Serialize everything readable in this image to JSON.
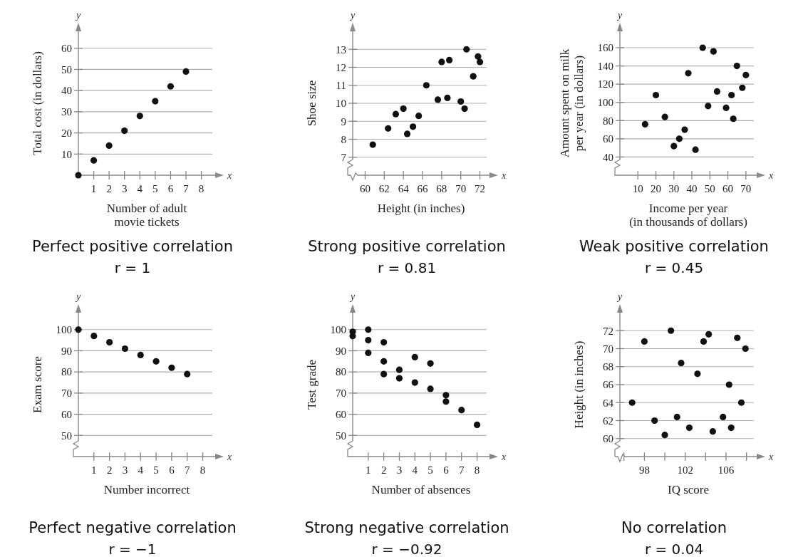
{
  "chart_data": [
    {
      "type": "scatter",
      "title": "Perfect positive correlation",
      "subtitle": "r = 1",
      "xlabel": "Number of adult\nmovie tickets",
      "ylabel": "Total cost (in dollars)",
      "annotations": [
        "y",
        "x"
      ],
      "xlim": [
        0,
        8.9
      ],
      "ylim": [
        0,
        68
      ],
      "xticks": [
        1,
        2,
        3,
        4,
        5,
        6,
        7,
        8
      ],
      "yticks": [
        10,
        20,
        30,
        40,
        50,
        60
      ],
      "grid": "y",
      "marker": "circle",
      "series": [
        {
          "color": "#111111",
          "x": [
            0,
            1,
            2,
            3,
            4,
            5,
            6,
            7
          ],
          "values": [
            0,
            7,
            14,
            21,
            28,
            35,
            42,
            49
          ]
        }
      ]
    },
    {
      "type": "scatter",
      "title": "Strong positive correlation",
      "subtitle": "r = 0.81",
      "xlabel": "Height (in inches)",
      "ylabel": "Shoe size",
      "annotations": [
        "y",
        "x"
      ],
      "xlim": [
        58.7,
        73
      ],
      "ylim": [
        6,
        14
      ],
      "xticks": [
        60,
        62,
        64,
        66,
        68,
        70,
        72
      ],
      "yticks": [
        7,
        8,
        9,
        10,
        11,
        12,
        13
      ],
      "grid": "y",
      "marker": "circle",
      "series": [
        {
          "color": "#111111",
          "x": [
            60.8,
            62.4,
            63.2,
            64.0,
            64.4,
            65.0,
            65.6,
            66.4,
            67.6,
            68.0,
            68.6,
            68.8,
            70.0,
            70.4,
            70.6,
            71.3,
            71.8,
            72.0
          ],
          "values": [
            7.7,
            8.6,
            9.4,
            9.7,
            8.3,
            8.7,
            9.3,
            11.0,
            10.2,
            12.3,
            10.3,
            12.4,
            10.1,
            9.7,
            13.0,
            11.5,
            12.6,
            12.3
          ]
        }
      ]
    },
    {
      "type": "scatter",
      "title": "Weak positive correlation",
      "subtitle": "r = 0.45",
      "xlabel": "Income per year\n(in thousands of dollars)",
      "ylabel": "Amount spent on milk\nper year (in dollars)",
      "annotations": [
        "y",
        "x"
      ],
      "xlim": [
        0,
        76
      ],
      "ylim": [
        20,
        178
      ],
      "xticks": [
        10,
        20,
        30,
        40,
        50,
        60,
        70
      ],
      "yticks": [
        40,
        60,
        80,
        100,
        120,
        140,
        160
      ],
      "grid": "y",
      "marker": "circle",
      "series": [
        {
          "color": "#111111",
          "x": [
            14,
            20,
            25,
            30,
            33,
            36,
            38,
            42,
            46,
            49,
            52,
            54,
            59,
            62,
            63,
            65,
            68,
            70
          ],
          "values": [
            76,
            108,
            84,
            52,
            60,
            70,
            132,
            48,
            160,
            96,
            156,
            112,
            94,
            108,
            82,
            140,
            116,
            130
          ]
        }
      ]
    },
    {
      "type": "scatter",
      "title": "Perfect negative correlation",
      "subtitle": "r = −1",
      "xlabel": "Number incorrect",
      "ylabel": "Exam score",
      "annotations": [
        "y",
        "x"
      ],
      "xlim": [
        0,
        8.8
      ],
      "ylim": [
        40,
        108
      ],
      "xticks": [
        1,
        2,
        3,
        4,
        5,
        6,
        7,
        8
      ],
      "yticks": [
        50,
        60,
        70,
        80,
        90,
        100
      ],
      "grid": "y",
      "marker": "circle",
      "series": [
        {
          "color": "#111111",
          "x": [
            0,
            1,
            2,
            3,
            4,
            5,
            6,
            7
          ],
          "values": [
            100,
            97,
            94,
            91,
            88,
            85,
            82,
            79
          ]
        }
      ]
    },
    {
      "type": "scatter",
      "title": "Strong negative correlation",
      "subtitle": "r = −0.92",
      "xlabel": "Number of absences",
      "ylabel": "Test grade",
      "annotations": [
        "y",
        "x"
      ],
      "xlim": [
        0,
        8.8
      ],
      "ylim": [
        40,
        108
      ],
      "xticks": [
        1,
        2,
        3,
        4,
        5,
        6,
        7,
        8
      ],
      "yticks": [
        50,
        60,
        70,
        80,
        90,
        100
      ],
      "grid": "y",
      "marker": "circle",
      "series": [
        {
          "color": "#111111",
          "x": [
            0,
            0,
            1,
            1,
            1,
            2,
            2,
            2,
            3,
            3,
            4,
            4,
            5,
            5,
            6,
            6,
            7,
            8
          ],
          "values": [
            99,
            97,
            100,
            95,
            89,
            94,
            85,
            79,
            81,
            77,
            87,
            75,
            84,
            72,
            69,
            66,
            62,
            55
          ]
        }
      ]
    },
    {
      "type": "scatter",
      "title": "No correlation",
      "subtitle": "r = 0.04",
      "xlabel": "IQ score",
      "ylabel": "Height (in inches)",
      "annotations": [
        "y",
        "x"
      ],
      "xlim": [
        95.6,
        109
      ],
      "ylim": [
        58,
        74
      ],
      "xticks": [
        {
          "value": 96,
          "label": null
        },
        98,
        {
          "value": 100,
          "label": null
        },
        102,
        {
          "value": 104,
          "label": null
        },
        106,
        {
          "value": 108,
          "label": null
        }
      ],
      "yticks": [
        60,
        62,
        64,
        66,
        68,
        70,
        72
      ],
      "grid": "y",
      "marker": "circle",
      "series": [
        {
          "color": "#111111",
          "x": [
            96.8,
            98.0,
            99.0,
            100.0,
            100.6,
            101.2,
            101.6,
            102.4,
            103.2,
            103.8,
            104.3,
            104.7,
            105.7,
            106.3,
            106.5,
            107.1,
            107.5,
            107.9
          ],
          "values": [
            64.0,
            70.8,
            62.0,
            60.4,
            72.0,
            62.4,
            68.4,
            61.2,
            67.2,
            70.8,
            71.6,
            60.8,
            62.4,
            66.0,
            61.2,
            71.2,
            64.0,
            70.0
          ]
        }
      ]
    }
  ]
}
